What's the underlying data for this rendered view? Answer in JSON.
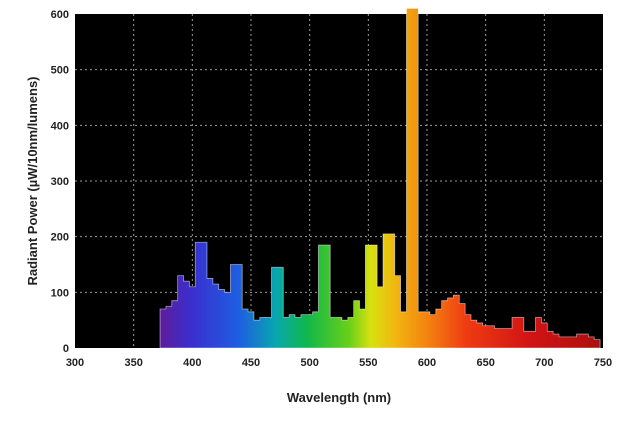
{
  "chart_data": {
    "type": "area",
    "title": "",
    "xlabel": "Wavelength (nm)",
    "ylabel": "Radiant Power (µW/10nm/lumens)",
    "xlim": [
      300,
      750
    ],
    "ylim": [
      0,
      600
    ],
    "x_ticks": [
      300,
      350,
      400,
      450,
      500,
      550,
      600,
      650,
      700,
      750
    ],
    "y_ticks": [
      0,
      100,
      200,
      300,
      400,
      500,
      600
    ],
    "x_tick_labels": [
      "300",
      "350",
      "400",
      "450",
      "500",
      "550",
      "600",
      "650",
      "700",
      "750"
    ],
    "y_tick_labels": [
      "0",
      "100",
      "200",
      "300",
      "400",
      "500",
      "600"
    ],
    "grid": true,
    "background_color": "#000000",
    "fill": "visible spectrum gradient (violet to red)",
    "series": [
      {
        "x": [
          375,
          380,
          385,
          390,
          395,
          400,
          405,
          410,
          415,
          420,
          425,
          430,
          435,
          440,
          445,
          450,
          455,
          460,
          465,
          470,
          475,
          480,
          485,
          490,
          495,
          500,
          505,
          510,
          515,
          520,
          525,
          530,
          535,
          540,
          545,
          550,
          555,
          560,
          565,
          570,
          575,
          580,
          585,
          590,
          595,
          600,
          605,
          610,
          615,
          620,
          625,
          630,
          635,
          640,
          645,
          650,
          655,
          660,
          665,
          670,
          675,
          680,
          685,
          690,
          695,
          700,
          705,
          710,
          715,
          720,
          725,
          730,
          735,
          740,
          745
        ],
        "values": [
          70,
          75,
          85,
          130,
          120,
          110,
          190,
          190,
          125,
          115,
          105,
          100,
          150,
          150,
          70,
          65,
          50,
          55,
          55,
          145,
          145,
          55,
          60,
          55,
          60,
          60,
          65,
          185,
          185,
          55,
          55,
          50,
          55,
          85,
          70,
          185,
          185,
          110,
          205,
          205,
          130,
          65,
          610,
          610,
          65,
          65,
          60,
          70,
          85,
          90,
          95,
          80,
          60,
          50,
          45,
          40,
          40,
          35,
          35,
          35,
          55,
          55,
          30,
          30,
          55,
          45,
          30,
          25,
          20,
          20,
          20,
          25,
          25,
          20,
          15
        ]
      }
    ]
  }
}
